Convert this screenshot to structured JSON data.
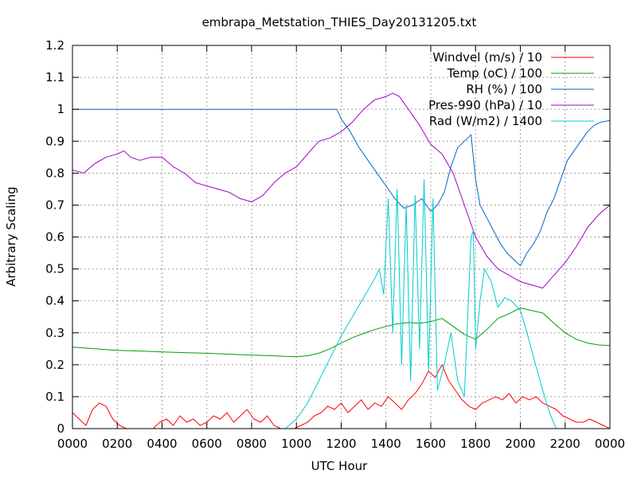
{
  "chart_data": {
    "type": "line",
    "title": "embrapa_Metstation_THIES_Day20131205.txt",
    "xlabel": "UTC Hour",
    "ylabel": "Arbitrary Scaling",
    "xlim": [
      0,
      24
    ],
    "ylim": [
      0,
      1.2
    ],
    "xticks": [
      "0000",
      "0200",
      "0400",
      "0600",
      "0800",
      "1000",
      "1200",
      "1400",
      "1600",
      "1800",
      "2000",
      "2200",
      "0000"
    ],
    "yticks": [
      "0",
      "0.1",
      "0.2",
      "0.3",
      "0.4",
      "0.5",
      "0.6",
      "0.7",
      "0.8",
      "0.9",
      "1",
      "1.1",
      "1.2"
    ],
    "grid": true,
    "legend_position": "top-right",
    "series": [
      {
        "name": "Windvel (m/s) / 10",
        "color": "#ff0000",
        "x": [
          0,
          0.3,
          0.6,
          0.9,
          1.2,
          1.5,
          1.8,
          2.1,
          2.4,
          2.7,
          3.0,
          3.3,
          3.6,
          3.9,
          4.2,
          4.5,
          4.8,
          5.1,
          5.4,
          5.7,
          6.0,
          6.3,
          6.6,
          6.9,
          7.2,
          7.5,
          7.8,
          8.1,
          8.4,
          8.7,
          9.0,
          9.3,
          9.6,
          9.9,
          10.2,
          10.5,
          10.8,
          11.1,
          11.4,
          11.7,
          12.0,
          12.3,
          12.6,
          12.9,
          13.2,
          13.5,
          13.8,
          14.1,
          14.4,
          14.7,
          15.0,
          15.3,
          15.6,
          15.9,
          16.2,
          16.5,
          16.8,
          17.1,
          17.4,
          17.7,
          18.0,
          18.3,
          18.6,
          18.9,
          19.2,
          19.5,
          19.8,
          20.1,
          20.4,
          20.7,
          21.0,
          21.3,
          21.6,
          21.9,
          22.2,
          22.5,
          22.8,
          23.1,
          23.4,
          23.7,
          24.0
        ],
        "y": [
          0.05,
          0.03,
          0.01,
          0.06,
          0.08,
          0.07,
          0.03,
          0.01,
          0.0,
          0.0,
          0.0,
          0.0,
          0.0,
          0.02,
          0.03,
          0.01,
          0.04,
          0.02,
          0.03,
          0.01,
          0.02,
          0.04,
          0.03,
          0.05,
          0.02,
          0.04,
          0.06,
          0.03,
          0.02,
          0.04,
          0.01,
          0.0,
          0.0,
          0.0,
          0.01,
          0.02,
          0.04,
          0.05,
          0.07,
          0.06,
          0.08,
          0.05,
          0.07,
          0.09,
          0.06,
          0.08,
          0.07,
          0.1,
          0.08,
          0.06,
          0.09,
          0.11,
          0.14,
          0.18,
          0.16,
          0.2,
          0.15,
          0.12,
          0.09,
          0.07,
          0.06,
          0.08,
          0.09,
          0.1,
          0.09,
          0.11,
          0.08,
          0.1,
          0.09,
          0.1,
          0.08,
          0.07,
          0.06,
          0.04,
          0.03,
          0.02,
          0.02,
          0.03,
          0.02,
          0.01,
          0.0
        ]
      },
      {
        "name": "Temp (oC) / 100",
        "color": "#00a000",
        "x": [
          0,
          1,
          2,
          3,
          4,
          5,
          6,
          7,
          8,
          9,
          9.5,
          10,
          10.5,
          11,
          11.5,
          12,
          12.5,
          13,
          13.5,
          14,
          14.5,
          15,
          15.5,
          16,
          16.5,
          17,
          17.5,
          18,
          18.5,
          19,
          19.5,
          20,
          20.5,
          21,
          21.5,
          22,
          22.5,
          23,
          23.5,
          24
        ],
        "y": [
          0.255,
          0.25,
          0.245,
          0.243,
          0.24,
          0.238,
          0.236,
          0.233,
          0.23,
          0.228,
          0.226,
          0.225,
          0.228,
          0.236,
          0.25,
          0.268,
          0.285,
          0.298,
          0.31,
          0.32,
          0.328,
          0.332,
          0.33,
          0.335,
          0.345,
          0.32,
          0.295,
          0.28,
          0.31,
          0.345,
          0.36,
          0.378,
          0.37,
          0.362,
          0.33,
          0.3,
          0.28,
          0.268,
          0.262,
          0.26
        ]
      },
      {
        "name": "RH (%) / 100",
        "color": "#0066cc",
        "x": [
          0,
          2,
          4,
          6,
          8,
          10,
          11,
          11.8,
          12.0,
          12.4,
          12.8,
          13.2,
          13.6,
          14.0,
          14.4,
          14.8,
          15.2,
          15.6,
          16.0,
          16.3,
          16.6,
          16.9,
          17.2,
          17.5,
          17.8,
          18.0,
          18.2,
          18.5,
          18.8,
          19.1,
          19.4,
          19.7,
          20.0,
          20.3,
          20.6,
          20.9,
          21.2,
          21.5,
          21.8,
          22.1,
          22.4,
          22.7,
          23.0,
          23.3,
          23.6,
          24.0
        ],
        "y": [
          1.0,
          1.0,
          1.0,
          1.0,
          1.0,
          1.0,
          1.0,
          1.0,
          0.97,
          0.93,
          0.88,
          0.84,
          0.8,
          0.76,
          0.72,
          0.69,
          0.7,
          0.72,
          0.68,
          0.7,
          0.74,
          0.82,
          0.88,
          0.9,
          0.92,
          0.78,
          0.7,
          0.66,
          0.62,
          0.58,
          0.55,
          0.53,
          0.51,
          0.55,
          0.58,
          0.62,
          0.68,
          0.72,
          0.78,
          0.84,
          0.87,
          0.9,
          0.93,
          0.95,
          0.96,
          0.965
        ]
      },
      {
        "name": "Pres-990 (hPa) / 10",
        "color": "#a000c8",
        "x": [
          0,
          0.5,
          1,
          1.5,
          2,
          2.3,
          2.6,
          3,
          3.5,
          4,
          4.5,
          5,
          5.5,
          6,
          6.5,
          7,
          7.5,
          8,
          8.5,
          9,
          9.5,
          10,
          10.5,
          11,
          11.5,
          12,
          12.5,
          13,
          13.5,
          14,
          14.3,
          14.6,
          15,
          15.5,
          16,
          16.5,
          17,
          17.5,
          18,
          18.5,
          19,
          19.5,
          20,
          20.5,
          21,
          21.5,
          22,
          22.5,
          23,
          23.5,
          24
        ],
        "y": [
          0.81,
          0.8,
          0.83,
          0.85,
          0.86,
          0.87,
          0.85,
          0.84,
          0.85,
          0.85,
          0.82,
          0.8,
          0.77,
          0.76,
          0.75,
          0.74,
          0.72,
          0.71,
          0.73,
          0.77,
          0.8,
          0.82,
          0.86,
          0.9,
          0.91,
          0.93,
          0.96,
          1.0,
          1.03,
          1.04,
          1.05,
          1.04,
          1.0,
          0.95,
          0.89,
          0.86,
          0.8,
          0.7,
          0.6,
          0.54,
          0.5,
          0.48,
          0.46,
          0.45,
          0.44,
          0.48,
          0.52,
          0.57,
          0.63,
          0.67,
          0.7
        ]
      },
      {
        "name": "Rad (W/m2) / 1400",
        "color": "#00cccc",
        "x": [
          0,
          2,
          4,
          6,
          8,
          9.5,
          10,
          10.5,
          11,
          11.5,
          12,
          12.5,
          13,
          13.5,
          13.7,
          13.9,
          14.1,
          14.3,
          14.5,
          14.7,
          14.9,
          15.1,
          15.3,
          15.5,
          15.7,
          15.9,
          16.1,
          16.3,
          16.6,
          16.9,
          17.2,
          17.5,
          17.8,
          17.9,
          18.0,
          18.2,
          18.4,
          18.7,
          19.0,
          19.3,
          19.6,
          20.0,
          20.3,
          20.6,
          21.0,
          21.3,
          21.6,
          22,
          23,
          24
        ],
        "y": [
          0.0,
          0.0,
          0.0,
          0.0,
          0.0,
          0.0,
          0.03,
          0.08,
          0.15,
          0.22,
          0.29,
          0.35,
          0.41,
          0.47,
          0.5,
          0.42,
          0.72,
          0.3,
          0.75,
          0.2,
          0.7,
          0.15,
          0.73,
          0.25,
          0.78,
          0.18,
          0.72,
          0.12,
          0.2,
          0.3,
          0.15,
          0.1,
          0.6,
          0.62,
          0.25,
          0.4,
          0.5,
          0.46,
          0.38,
          0.41,
          0.4,
          0.37,
          0.3,
          0.22,
          0.12,
          0.05,
          0.0,
          0.0,
          0.0,
          0.0
        ]
      }
    ]
  }
}
